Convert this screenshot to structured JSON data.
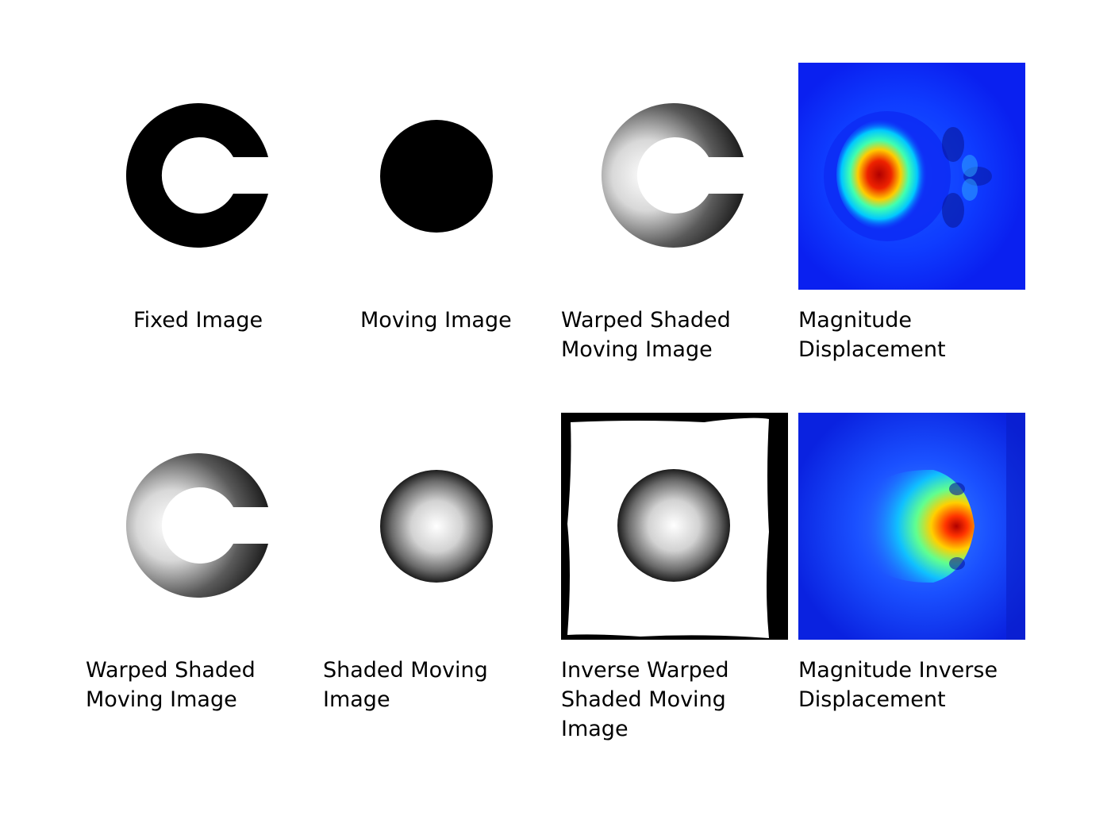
{
  "figure": {
    "panels": [
      {
        "id": "fixed-image",
        "caption": "Fixed Image"
      },
      {
        "id": "moving-image",
        "caption": "Moving Image"
      },
      {
        "id": "warped-shaded-moving-image-top",
        "caption": "Warped Shaded\nMoving Image"
      },
      {
        "id": "magnitude-displacement",
        "caption": "Magnitude\nDisplacement"
      },
      {
        "id": "warped-shaded-moving-image-bottom",
        "caption": "Warped Shaded\nMoving Image"
      },
      {
        "id": "shaded-moving-image",
        "caption": "Shaded Moving\nImage"
      },
      {
        "id": "inverse-warped-shaded-moving-image",
        "caption": "Inverse Warped\nShaded Moving\nImage"
      },
      {
        "id": "magnitude-inverse-displacement",
        "caption": "Magnitude Inverse\nDisplacement"
      }
    ],
    "colors": {
      "background": "#ffffff",
      "shape": "#000000",
      "heatmap_low": "#0a20f0",
      "heatmap_high": "#b00000"
    }
  }
}
